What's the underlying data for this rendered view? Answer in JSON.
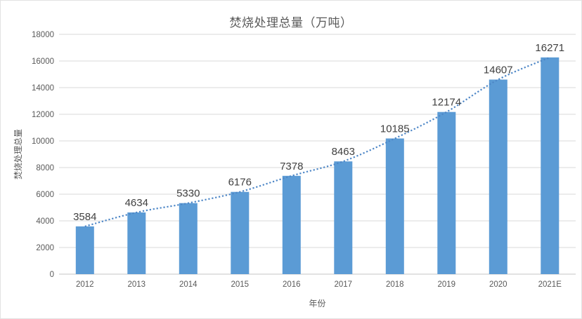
{
  "chart_data": {
    "type": "bar",
    "title": "焚烧处理总量（万吨）",
    "xlabel": "年份",
    "ylabel": "焚烧处理总量",
    "categories": [
      "2012",
      "2013",
      "2014",
      "2015",
      "2016",
      "2017",
      "2018",
      "2019",
      "2020",
      "2021E"
    ],
    "values": [
      3584,
      4634,
      5330,
      6176,
      7378,
      8463,
      10185,
      12174,
      14607,
      16271
    ],
    "ylim": [
      0,
      18000
    ],
    "ytick_step": 2000,
    "grid": true,
    "legend": "none",
    "data_labels": true,
    "trendline": {
      "style": "dotted",
      "color": "#4e87c7"
    },
    "colors": {
      "bar": "#5b9bd5",
      "gridline": "#d9d9d9",
      "axis_line": "#c6c6c6",
      "tick_text": "#595959",
      "data_label_text": "#404040",
      "title_text": "#595959"
    }
  }
}
